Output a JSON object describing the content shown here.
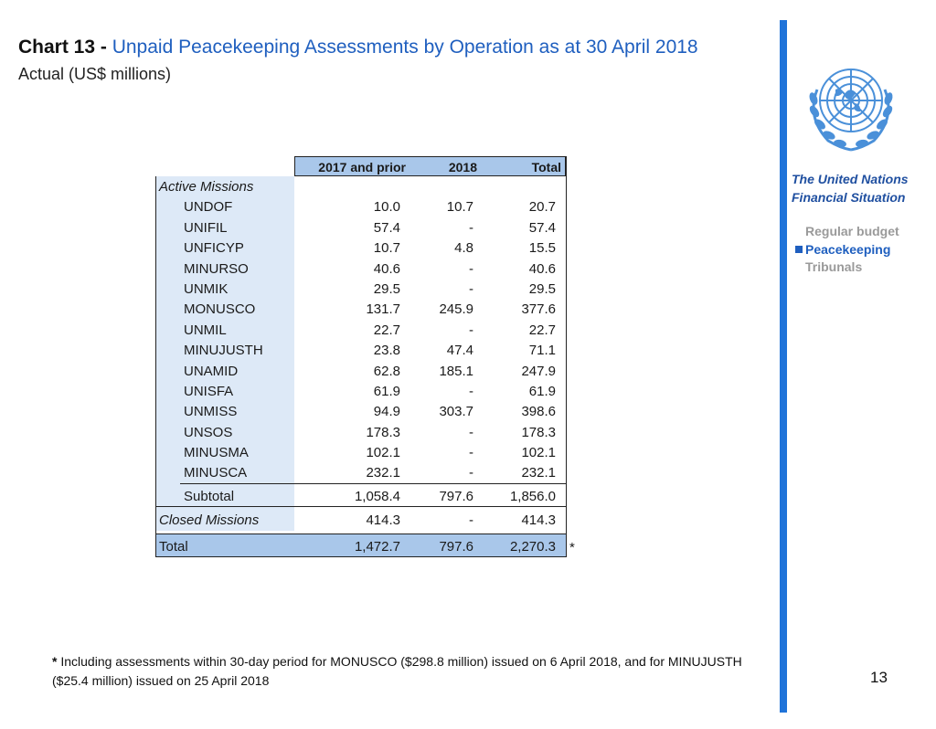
{
  "title": {
    "prefix": "Chart 13 -",
    "main": "Unpaid Peacekeeping Assessments by Operation as at 30 April 2018",
    "subtitle": "Actual (US$ millions)"
  },
  "sidebar": {
    "title_line1": "The United Nations",
    "title_line2": "Financial Situation",
    "nav": [
      "Regular budget",
      "Peacekeeping",
      "Tribunals"
    ],
    "active": "Peacekeeping",
    "accent_color": "#1f73d9"
  },
  "chart_data": {
    "type": "table",
    "columns": [
      "2017 and prior",
      "2018",
      "Total"
    ],
    "active_label": "Active Missions",
    "rows": [
      {
        "label": "UNDOF",
        "prior": "10.0",
        "y2018": "10.7",
        "total": "20.7"
      },
      {
        "label": "UNIFIL",
        "prior": "57.4",
        "y2018": "-",
        "total": "57.4"
      },
      {
        "label": "UNFICYP",
        "prior": "10.7",
        "y2018": "4.8",
        "total": "15.5"
      },
      {
        "label": "MINURSO",
        "prior": "40.6",
        "y2018": "-",
        "total": "40.6"
      },
      {
        "label": "UNMIK",
        "prior": "29.5",
        "y2018": "-",
        "total": "29.5"
      },
      {
        "label": "MONUSCO",
        "prior": "131.7",
        "y2018": "245.9",
        "total": "377.6"
      },
      {
        "label": "UNMIL",
        "prior": "22.7",
        "y2018": "-",
        "total": "22.7"
      },
      {
        "label": "MINUJUSTH",
        "prior": "23.8",
        "y2018": "47.4",
        "total": "71.1"
      },
      {
        "label": "UNAMID",
        "prior": "62.8",
        "y2018": "185.1",
        "total": "247.9"
      },
      {
        "label": "UNISFA",
        "prior": "61.9",
        "y2018": "-",
        "total": "61.9"
      },
      {
        "label": "UNMISS",
        "prior": "94.9",
        "y2018": "303.7",
        "total": "398.6"
      },
      {
        "label": "UNSOS",
        "prior": "178.3",
        "y2018": "-",
        "total": "178.3"
      },
      {
        "label": "MINUSMA",
        "prior": "102.1",
        "y2018": "-",
        "total": "102.1"
      },
      {
        "label": "MINUSCA",
        "prior": "232.1",
        "y2018": "-",
        "total": "232.1"
      }
    ],
    "subtotal": {
      "label": "Subtotal",
      "prior": "1,058.4",
      "y2018": "797.6",
      "total": "1,856.0"
    },
    "closed": {
      "label": "Closed Missions",
      "prior": "414.3",
      "y2018": "-",
      "total": "414.3"
    },
    "grand_total": {
      "label": "Total",
      "prior": "1,472.7",
      "y2018": "797.6",
      "total": "2,270.3"
    },
    "total_marker": "*"
  },
  "footnote": {
    "marker": "*",
    "text": "Including assessments within 30-day period for MONUSCO ($298.8 million) issued on 6 April 2018, and  for MINUJUSTH ($25.4 million) issued on 25 April 2018"
  },
  "page_number": "13"
}
